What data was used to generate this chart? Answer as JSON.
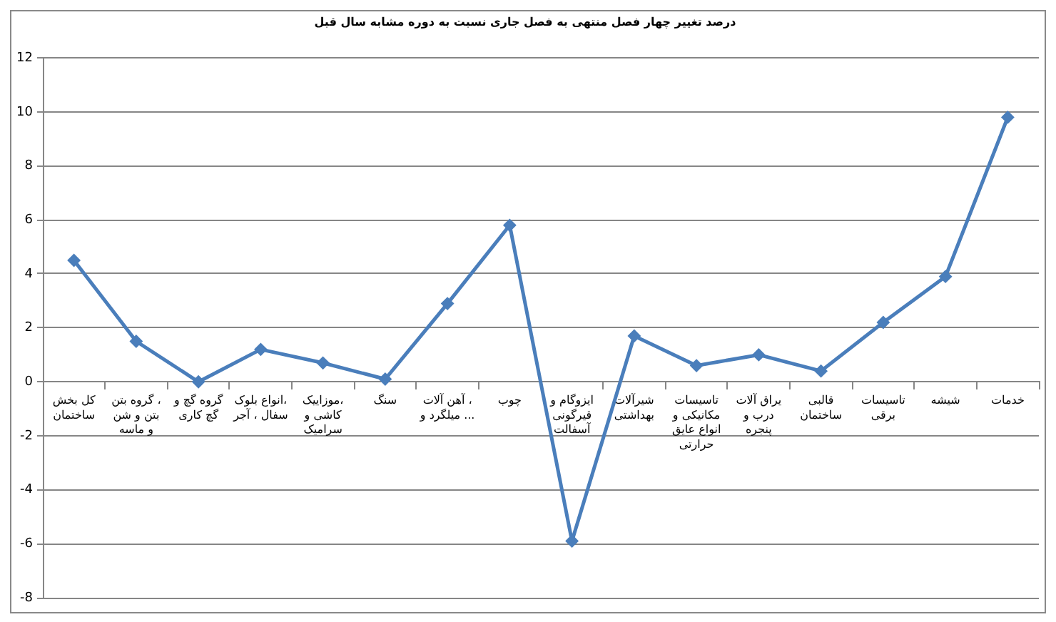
{
  "chart_data": {
    "type": "line",
    "title": "درصد تغییر چهار فصل منتهی به فصل جاری نسبت به دوره مشابه سال قبل",
    "categories": [
      "کل بخش ساختمان",
      "گروه بتن ، بتن و شن و ماسه",
      "گروه گچ و گچ کاری",
      "انواع بلوک، سفال ، آجر",
      "موزاییک، کاشی و سرامیک",
      "سنگ",
      "آهن آلات ، میلگرد و ...",
      "چوب",
      "ایزوگام و قیرگونی آسفالت",
      "شیرآلات بهداشتی",
      "تاسیسات مکانیکی و انواع عایق حرارتی",
      "یراق آلات درب و پنجره",
      "قالبی ساختمان",
      "تاسیسات برقی",
      "شیشه",
      "خدمات"
    ],
    "series": [
      {
        "color": "#4a7ebb",
        "values": [
          4.5,
          1.5,
          0,
          1.2,
          0.7,
          0.1,
          2.9,
          5.8,
          -5.9,
          1.7,
          0.6,
          1.0,
          0.4,
          2.2,
          3.9,
          9.8
        ]
      }
    ],
    "ylim": [
      -8,
      12
    ],
    "yticks": [
      -8,
      -6,
      -4,
      -2,
      0,
      2,
      4,
      6,
      8,
      10,
      12
    ],
    "grid": "y",
    "marker": "diamond",
    "line_style": "solid"
  }
}
